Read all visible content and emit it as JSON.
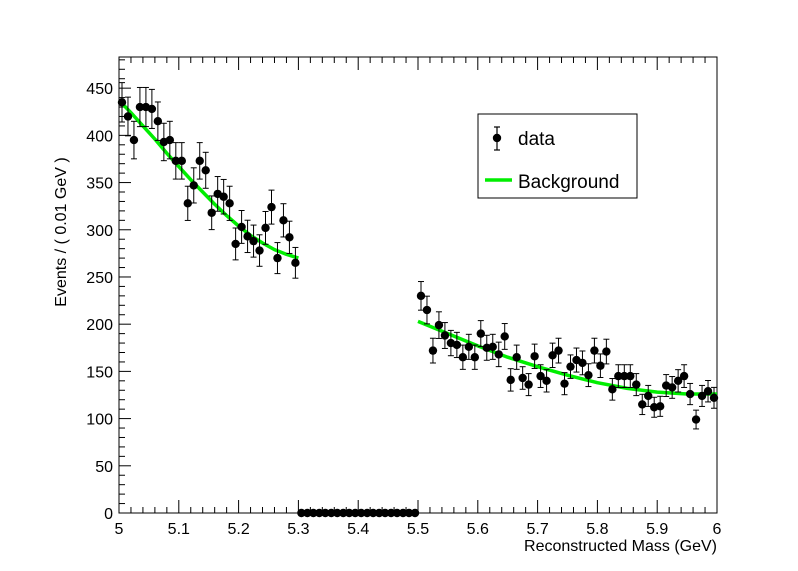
{
  "chart_data": {
    "type": "scatter",
    "title": "",
    "xlabel": "Reconstructed Mass (GeV)",
    "ylabel": "Events / ( 0.01 GeV )",
    "xlim": [
      5.0,
      6.0
    ],
    "ylim": [
      0,
      483
    ],
    "xticks": [
      5,
      5.1,
      5.2,
      5.3,
      5.4,
      5.5,
      5.6,
      5.7,
      5.8,
      5.9,
      6
    ],
    "xtick_labels": [
      "5",
      "5.1",
      "5.2",
      "5.3",
      "5.4",
      "5.5",
      "5.6",
      "5.7",
      "5.8",
      "5.9",
      "6"
    ],
    "yticks": [
      0,
      50,
      100,
      150,
      200,
      250,
      300,
      350,
      400,
      450
    ],
    "ytick_labels": [
      "0",
      "50",
      "100",
      "150",
      "200",
      "250",
      "300",
      "350",
      "400",
      "450"
    ],
    "grid": false,
    "legend_position": "top-right",
    "series": [
      {
        "name": "data",
        "kind": "points-with-errorbars",
        "color": "#000000",
        "x": [
          5.005,
          5.015,
          5.025,
          5.035,
          5.045,
          5.055,
          5.065,
          5.075,
          5.085,
          5.095,
          5.105,
          5.115,
          5.125,
          5.135,
          5.145,
          5.155,
          5.165,
          5.175,
          5.185,
          5.195,
          5.205,
          5.215,
          5.225,
          5.235,
          5.245,
          5.255,
          5.265,
          5.275,
          5.285,
          5.295,
          5.305,
          5.315,
          5.325,
          5.335,
          5.345,
          5.355,
          5.365,
          5.375,
          5.385,
          5.395,
          5.405,
          5.415,
          5.425,
          5.435,
          5.445,
          5.455,
          5.465,
          5.475,
          5.485,
          5.495,
          5.505,
          5.515,
          5.525,
          5.535,
          5.545,
          5.555,
          5.565,
          5.575,
          5.585,
          5.595,
          5.605,
          5.615,
          5.625,
          5.635,
          5.645,
          5.655,
          5.665,
          5.675,
          5.685,
          5.695,
          5.705,
          5.715,
          5.725,
          5.735,
          5.745,
          5.755,
          5.765,
          5.775,
          5.785,
          5.795,
          5.805,
          5.815,
          5.825,
          5.835,
          5.845,
          5.855,
          5.865,
          5.875,
          5.885,
          5.895,
          5.905,
          5.915,
          5.925,
          5.935,
          5.945,
          5.955,
          5.965,
          5.975,
          5.985,
          5.995
        ],
        "y": [
          435,
          420,
          395,
          430,
          430,
          428,
          415,
          393,
          395,
          373,
          373,
          328,
          347,
          373,
          363,
          318,
          338,
          335,
          328,
          285,
          303,
          293,
          288,
          278,
          302,
          324,
          270,
          310,
          292,
          265,
          0,
          0,
          0,
          0,
          0,
          0,
          0,
          0,
          0,
          0,
          0,
          0,
          0,
          0,
          0,
          0,
          0,
          0,
          0,
          0,
          230,
          215,
          172,
          199,
          188,
          180,
          178,
          165,
          176,
          165,
          190,
          175,
          176,
          168,
          187,
          141,
          165,
          143,
          136,
          166,
          145,
          140,
          167,
          172,
          137,
          155,
          162,
          159,
          146,
          172,
          156,
          171,
          131,
          145,
          145,
          145,
          136,
          115,
          124,
          112,
          113,
          135,
          133,
          140,
          145,
          126,
          99,
          124,
          129,
          122
        ]
      },
      {
        "name": "Background",
        "kind": "curve",
        "color": "#00ee00",
        "segments": [
          {
            "x": [
              5.0,
              5.02,
              5.04,
              5.06,
              5.08,
              5.1,
              5.12,
              5.14,
              5.16,
              5.18,
              5.2,
              5.22,
              5.24,
              5.26,
              5.28,
              5.3
            ],
            "y": [
              437,
              424,
              410,
              396,
              381,
              367,
              353,
              340,
              327,
              315,
              304,
              294,
              286,
              279,
              274,
              270
            ]
          },
          {
            "x": [
              5.5,
              5.55,
              5.6,
              5.65,
              5.7,
              5.75,
              5.8,
              5.85,
              5.9,
              5.95,
              6.0
            ],
            "y": [
              203,
              190,
              177,
              165,
              155,
              146,
              138,
              132,
              128,
              126,
              126
            ]
          }
        ]
      }
    ]
  }
}
